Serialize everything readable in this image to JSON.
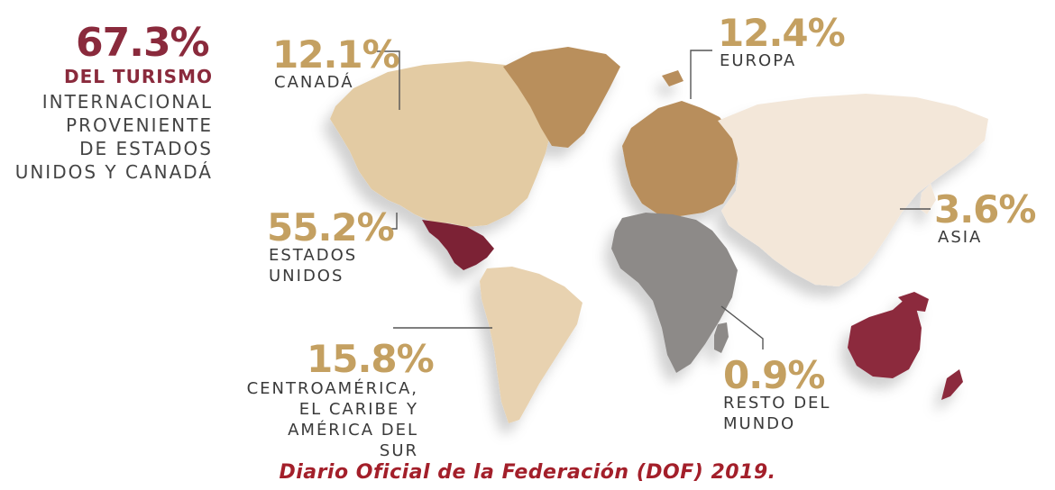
{
  "headline": {
    "percent": "67.3%",
    "bold_line": "DEL TURISMO",
    "lines": [
      "INTERNACIONAL",
      "PROVENIENTE",
      "DE ESTADOS",
      "UNIDOS Y CANADÁ"
    ]
  },
  "regions": [
    {
      "id": "canada",
      "percent": "12.1%",
      "label": [
        "CANADÁ"
      ],
      "share": 12.1
    },
    {
      "id": "europa",
      "percent": "12.4%",
      "label": [
        "EUROPA"
      ],
      "share": 12.4
    },
    {
      "id": "estados-unidos",
      "percent": "55.2%",
      "label": [
        "ESTADOS",
        "UNIDOS"
      ],
      "share": 55.2
    },
    {
      "id": "asia",
      "percent": "3.6%",
      "label": [
        "ASIA"
      ],
      "share": 3.6
    },
    {
      "id": "centroamerica",
      "percent": "15.8%",
      "label": [
        "CENTROAMÉRICA,",
        "EL CARIBE Y",
        "AMÉRICA DEL SUR"
      ],
      "share": 15.8
    },
    {
      "id": "resto",
      "percent": "0.9%",
      "label": [
        "RESTO DEL",
        "MUNDO"
      ],
      "share": 0.9
    }
  ],
  "colors": {
    "north_america": "#e3cba3",
    "greenland": "#b98f5c",
    "mexico": "#7c2336",
    "south_america": "#e8d2b0",
    "europe": "#b88e5b",
    "asia": "#f3e7d9",
    "africa": "#8d8a88",
    "oceania": "#8c2a3c",
    "accent_gold": "#c4a061",
    "accent_maroon": "#8a2a3c"
  },
  "source": "Diario Oficial de la Federación (DOF) 2019."
}
